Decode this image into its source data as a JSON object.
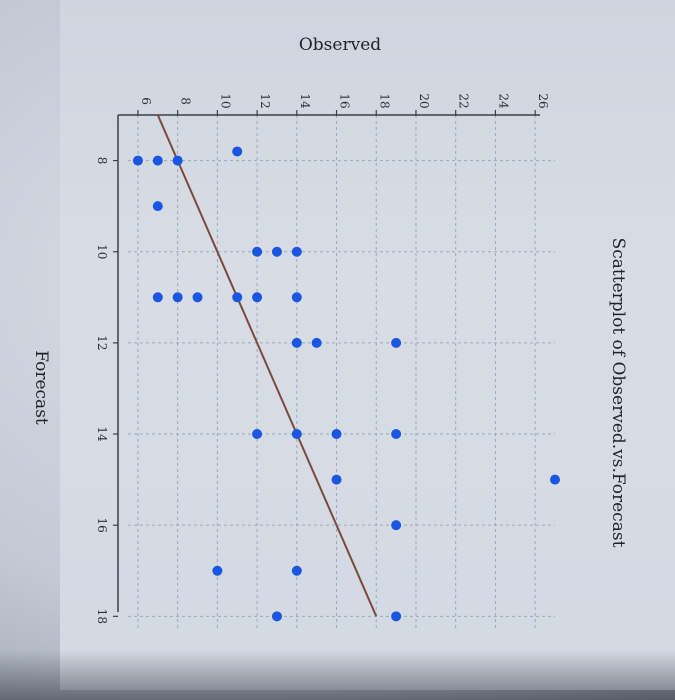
{
  "chart_data": {
    "type": "scatter",
    "title": "Scatterplot of Observed.vs.Forecast",
    "xlabel": "Forecast",
    "ylabel": "Observed",
    "xlim": [
      7,
      18.3
    ],
    "ylim": [
      5.5,
      27
    ],
    "xticks": [
      "8",
      "10",
      "12",
      "14",
      "16",
      "18"
    ],
    "yticks": [
      "6",
      "8",
      "10",
      "12",
      "14",
      "16",
      "18",
      "20",
      "22",
      "24",
      "26"
    ],
    "grid": true,
    "points": [
      {
        "x": 7.8,
        "y": 11
      },
      {
        "x": 8,
        "y": 6
      },
      {
        "x": 8,
        "y": 7
      },
      {
        "x": 8,
        "y": 8
      },
      {
        "x": 9,
        "y": 7
      },
      {
        "x": 10,
        "y": 12
      },
      {
        "x": 10,
        "y": 13
      },
      {
        "x": 10,
        "y": 14
      },
      {
        "x": 11,
        "y": 7
      },
      {
        "x": 11,
        "y": 8
      },
      {
        "x": 11,
        "y": 9
      },
      {
        "x": 11,
        "y": 11
      },
      {
        "x": 11,
        "y": 12
      },
      {
        "x": 11,
        "y": 14
      },
      {
        "x": 12,
        "y": 14
      },
      {
        "x": 12,
        "y": 15
      },
      {
        "x": 12,
        "y": 19
      },
      {
        "x": 14,
        "y": 12
      },
      {
        "x": 14,
        "y": 14
      },
      {
        "x": 14,
        "y": 16
      },
      {
        "x": 14,
        "y": 19
      },
      {
        "x": 15,
        "y": 16
      },
      {
        "x": 15,
        "y": 27
      },
      {
        "x": 16,
        "y": 19
      },
      {
        "x": 17,
        "y": 10
      },
      {
        "x": 17,
        "y": 14
      },
      {
        "x": 18,
        "y": 13
      },
      {
        "x": 18,
        "y": 19
      }
    ],
    "reference_line": {
      "from": [
        7,
        7
      ],
      "to": [
        18,
        18
      ]
    },
    "colors": {
      "points": "#1a56e0",
      "line": "#7a4a3c",
      "grid": "#9aa8bf",
      "axis": "#3a3f48"
    }
  }
}
